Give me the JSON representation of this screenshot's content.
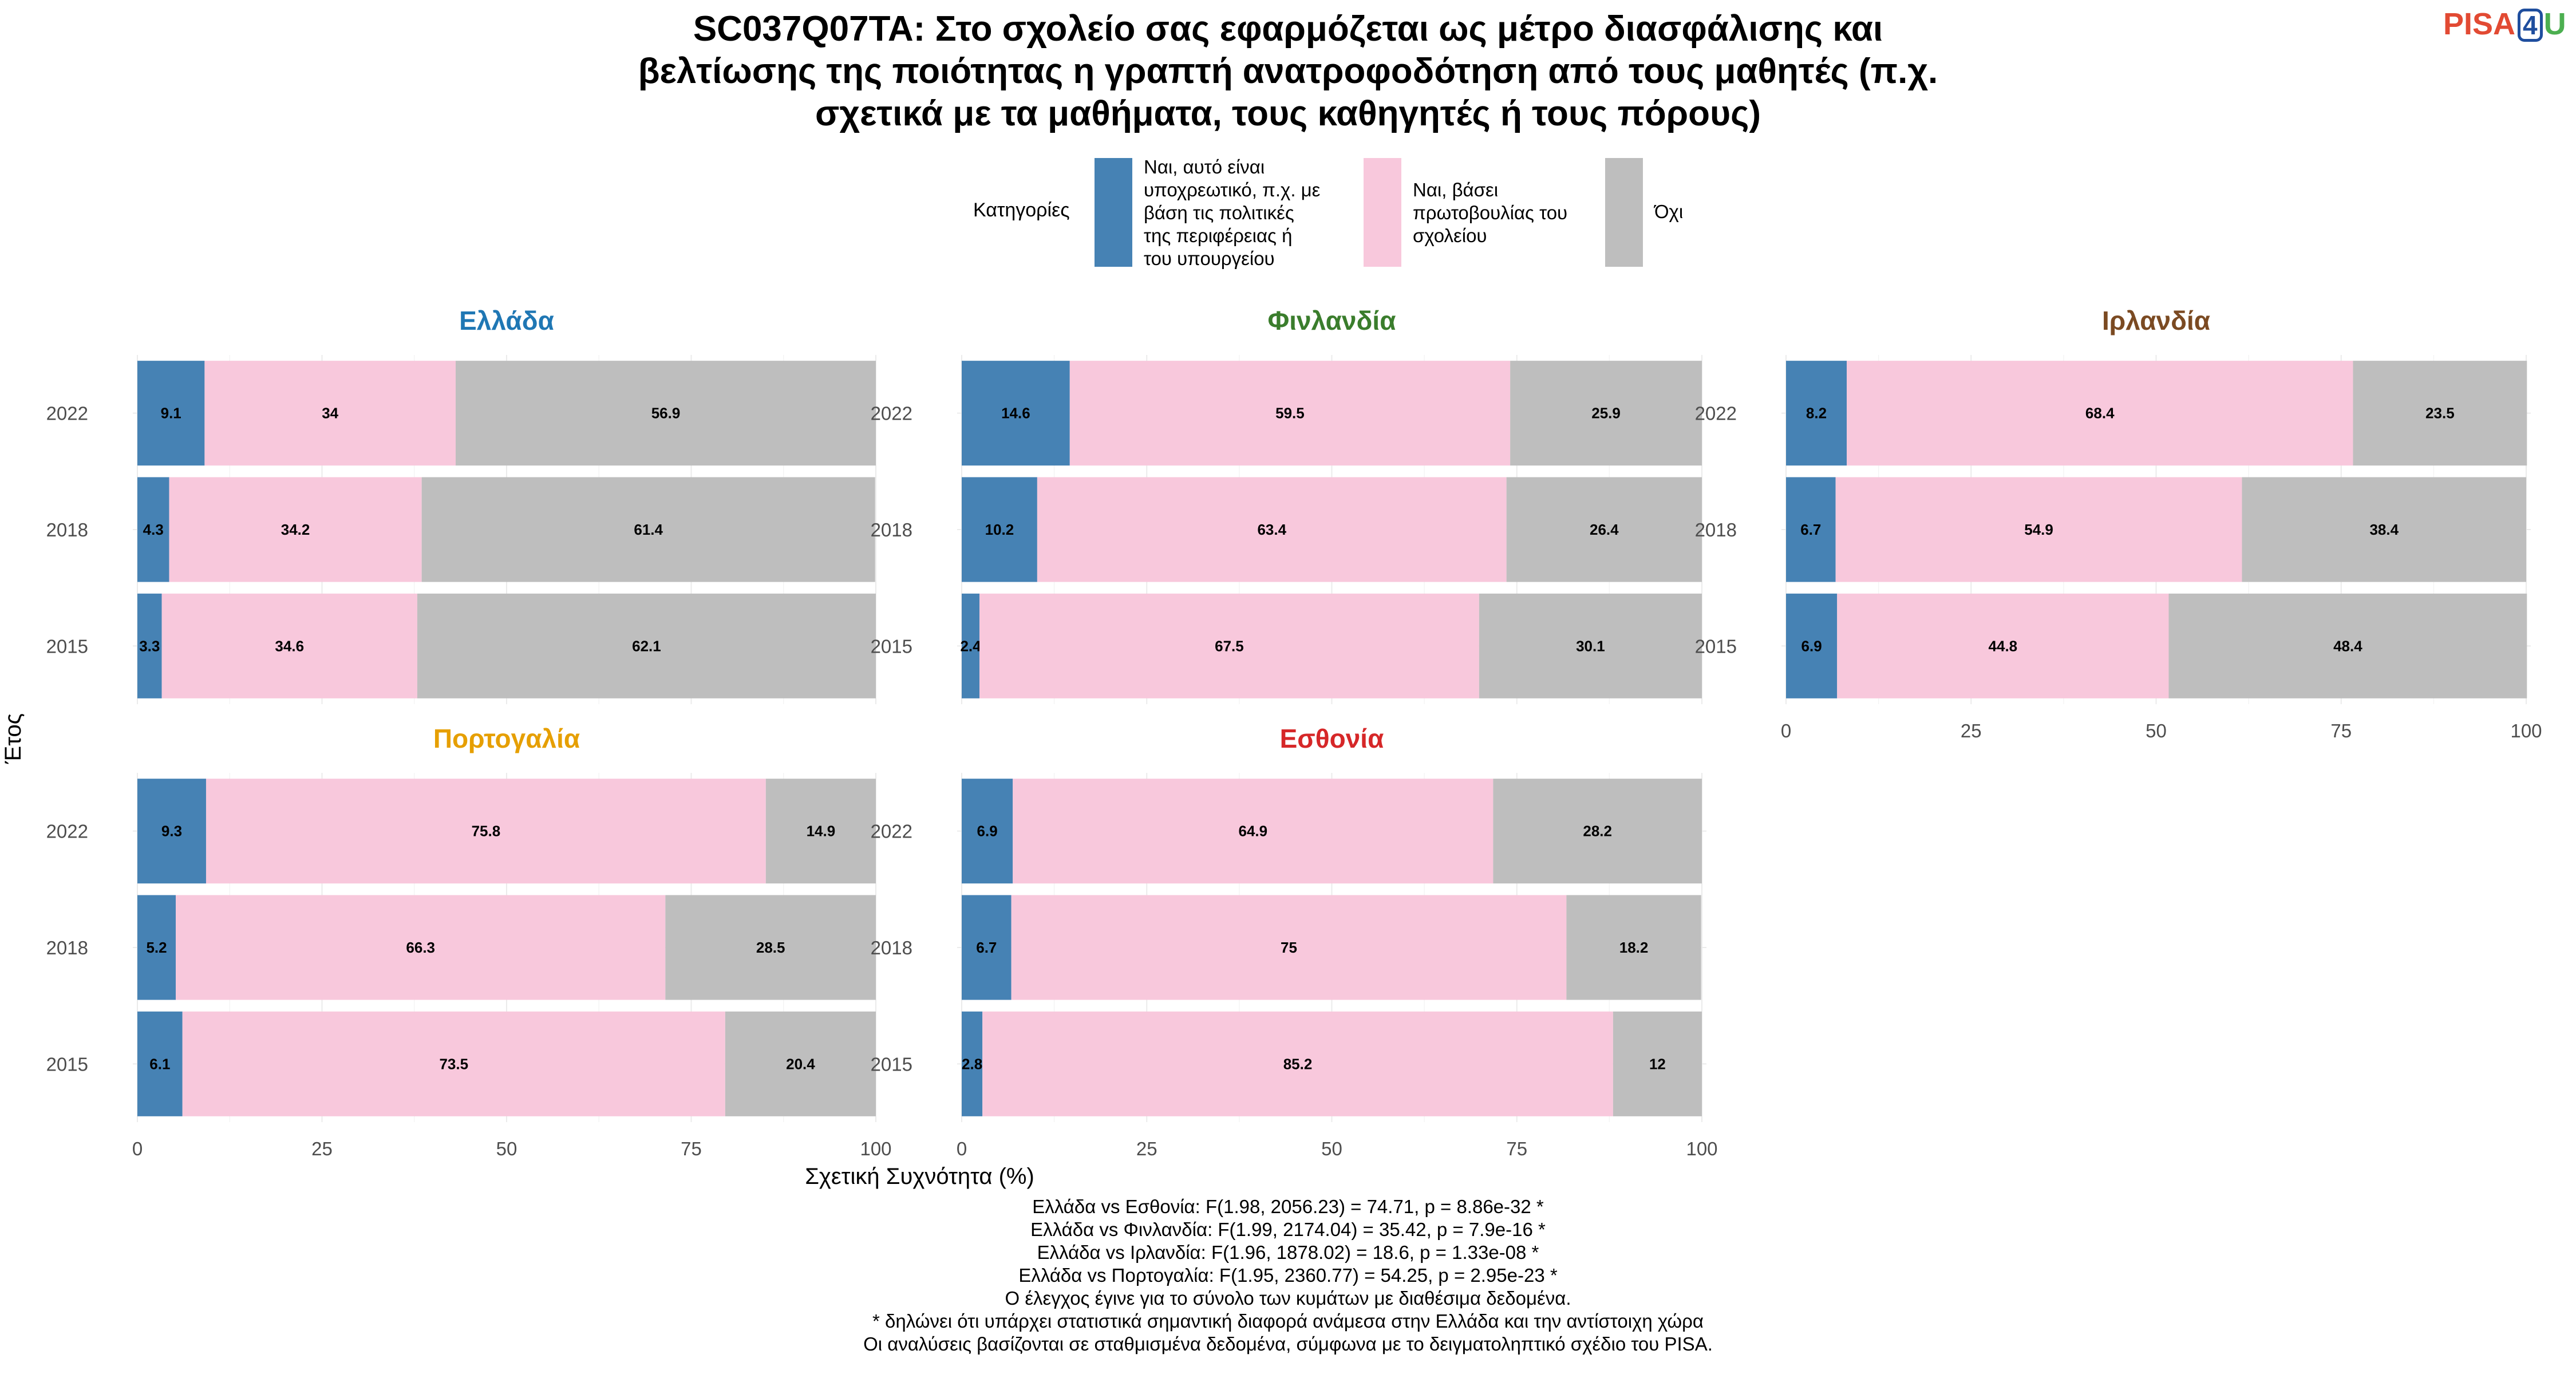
{
  "title_lines": [
    "SC037Q07TA: Στο σχολείο σας εφαρμόζεται ως μέτρο διασφάλισης και",
    "βελτίωσης της ποιότητας η γραπτή ανατροφοδότηση από τους μαθητές (π.χ.",
    "σχετικά με τα μαθήματα, τους καθηγητές ή τους πόρους)"
  ],
  "logo": {
    "part1": "PISA",
    "part2": "4",
    "part3": "U"
  },
  "legend": {
    "title": "Κατηγορίες",
    "items": [
      {
        "lines": [
          "Ναι, αυτό είναι",
          "υποχρεωτικό, π.χ. με",
          "βάση τις πολιτικές",
          "της περιφέρειας ή",
          "του υπουργείου"
        ],
        "color": "#4682b4"
      },
      {
        "lines": [
          "Ναι, βάσει",
          "πρωτοβουλίας του",
          "σχολείου"
        ],
        "color": "#f8c8dc"
      },
      {
        "lines": [
          "Όχι"
        ],
        "color": "#bebebe"
      }
    ]
  },
  "chart_data": {
    "type": "bar",
    "orientation": "horizontal",
    "stacked": true,
    "xlabel": "Σχετική Συχνότητα (%)",
    "ylabel": "Έτος",
    "xlim": [
      0,
      100
    ],
    "xticks": [
      0,
      25,
      50,
      75,
      100
    ],
    "years": [
      "2022",
      "2018",
      "2015"
    ],
    "categories": [
      "Ναι, αυτό είναι υποχρεωτικό, π.χ. με βάση τις πολιτικές της περιφέρειας ή του υπουργείου",
      "Ναι, βάσει πρωτοβουλίας του σχολείου",
      "Όχι"
    ],
    "colors": [
      "#4682b4",
      "#f8c8dc",
      "#bebebe"
    ],
    "panels": [
      {
        "name": "Ελλάδα",
        "title_color": "#1f77b4",
        "data": [
          {
            "year": "2022",
            "values": [
              9.1,
              34,
              56.9
            ],
            "labels": [
              "9.1",
              "34",
              "56.9"
            ]
          },
          {
            "year": "2018",
            "values": [
              4.3,
              34.2,
              61.4
            ],
            "labels": [
              "4.3",
              "34.2",
              "61.4"
            ]
          },
          {
            "year": "2015",
            "values": [
              3.3,
              34.6,
              62.1
            ],
            "labels": [
              "3.3",
              "34.6",
              "62.1"
            ]
          }
        ]
      },
      {
        "name": "Φινλανδία",
        "title_color": "#3a7d2c",
        "data": [
          {
            "year": "2022",
            "values": [
              14.6,
              59.5,
              25.9
            ],
            "labels": [
              "14.6",
              "59.5",
              "25.9"
            ]
          },
          {
            "year": "2018",
            "values": [
              10.2,
              63.4,
              26.4
            ],
            "labels": [
              "10.2",
              "63.4",
              "26.4"
            ]
          },
          {
            "year": "2015",
            "values": [
              2.4,
              67.5,
              30.1
            ],
            "labels": [
              "2.4",
              "67.5",
              "30.1"
            ]
          }
        ]
      },
      {
        "name": "Ιρλανδία",
        "title_color": "#7b4a22",
        "data": [
          {
            "year": "2022",
            "values": [
              8.2,
              68.4,
              23.5
            ],
            "labels": [
              "8.2",
              "68.4",
              "23.5"
            ]
          },
          {
            "year": "2018",
            "values": [
              6.7,
              54.9,
              38.4
            ],
            "labels": [
              "6.7",
              "54.9",
              "38.4"
            ]
          },
          {
            "year": "2015",
            "values": [
              6.9,
              44.8,
              48.4
            ],
            "labels": [
              "6.9",
              "44.8",
              "48.4"
            ]
          }
        ]
      },
      {
        "name": "Πορτογαλία",
        "title_color": "#e69f00",
        "data": [
          {
            "year": "2022",
            "values": [
              9.3,
              75.8,
              14.9
            ],
            "labels": [
              "9.3",
              "75.8",
              "14.9"
            ]
          },
          {
            "year": "2018",
            "values": [
              5.2,
              66.3,
              28.5
            ],
            "labels": [
              "5.2",
              "66.3",
              "28.5"
            ]
          },
          {
            "year": "2015",
            "values": [
              6.1,
              73.5,
              20.4
            ],
            "labels": [
              "6.1",
              "73.5",
              "20.4"
            ]
          }
        ]
      },
      {
        "name": "Εσθονία",
        "title_color": "#d62728",
        "data": [
          {
            "year": "2022",
            "values": [
              6.9,
              64.9,
              28.2
            ],
            "labels": [
              "6.9",
              "64.9",
              "28.2"
            ]
          },
          {
            "year": "2018",
            "values": [
              6.7,
              75,
              18.2
            ],
            "labels": [
              "6.7",
              "75",
              "18.2"
            ]
          },
          {
            "year": "2015",
            "values": [
              2.8,
              85.2,
              12
            ],
            "labels": [
              "2.8",
              "85.2",
              "12"
            ]
          }
        ]
      }
    ]
  },
  "footnotes": [
    "Ελλάδα vs Εσθονία: F(1.98, 2056.23) = 74.71, p = 8.86e-32 *",
    "Ελλάδα vs Φινλανδία: F(1.99, 2174.04) = 35.42, p = 7.9e-16 *",
    "Ελλάδα vs Ιρλανδία: F(1.96, 1878.02) = 18.6, p = 1.33e-08 *",
    "Ελλάδα vs Πορτογαλία: F(1.95, 2360.77) = 54.25, p = 2.95e-23 *",
    "Ο έλεγχος έγινε για το σύνολο των κυμάτων με διαθέσιμα δεδομένα.",
    "* δηλώνει ότι υπάρχει στατιστικά σημαντική διαφορά ανάμεσα στην Ελλάδα και την αντίστοιχη χώρα",
    "Οι αναλύσεις βασίζονται σε σταθμισμένα δεδομένα, σύμφωνα με το δειγματοληπτικό σχέδιο του PISA."
  ]
}
